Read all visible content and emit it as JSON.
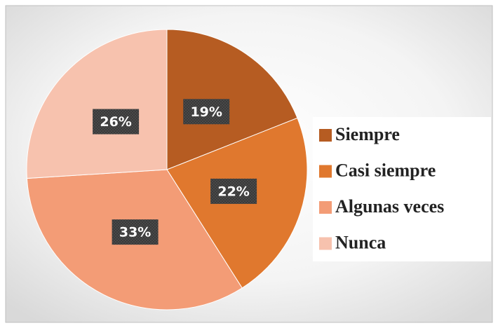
{
  "chart_data": {
    "type": "pie",
    "categories": [
      "Siempre",
      "Casi siempre",
      "Algunas veces",
      "Nunca"
    ],
    "values": [
      19,
      22,
      33,
      26
    ],
    "value_labels": [
      "19%",
      "22%",
      "33%",
      "26%"
    ],
    "colors": [
      "#b65c22",
      "#e0782e",
      "#f39c76",
      "#f7c2ae"
    ],
    "legend": "right"
  }
}
